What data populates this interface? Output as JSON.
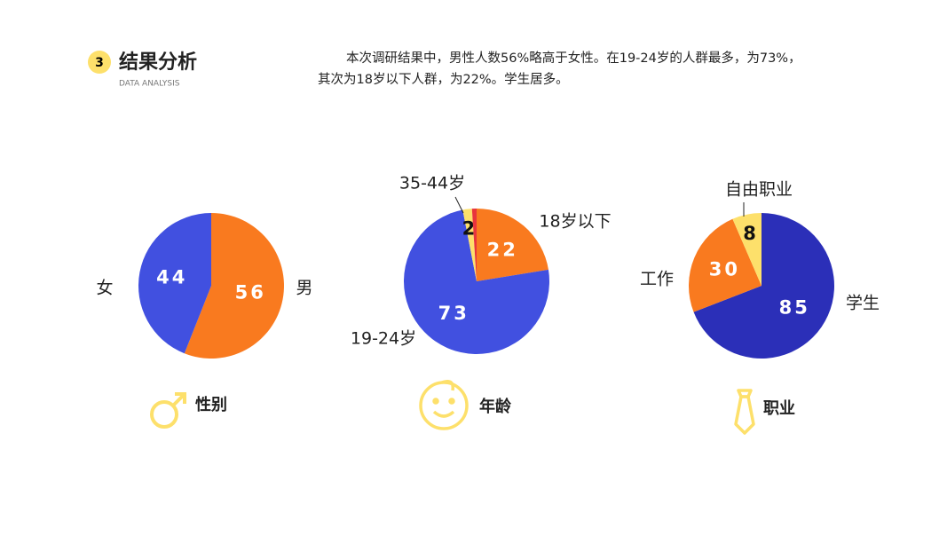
{
  "header": {
    "badge": "3",
    "title": "结果分析",
    "subtitle": "DATA ANALYSIS",
    "summary_lines": [
      "本次调研结果中，男性人数56%略高于女性。在19-24岁的人群最多，为73%，",
      "其次为18岁以下人群，为22%。学生居多。"
    ]
  },
  "chart_data": [
    {
      "type": "pie",
      "caption": "性别",
      "categories": [
        "男",
        "女"
      ],
      "values": [
        56,
        44
      ],
      "colors": [
        "#f97a1f",
        "#4150e0"
      ]
    },
    {
      "type": "pie",
      "caption": "年龄",
      "categories": [
        "18岁以下",
        "19-24岁",
        "35-44岁",
        null
      ],
      "values": [
        22,
        73,
        2,
        1
      ],
      "colors": [
        "#f97a1f",
        "#4150e0",
        "#fde06b",
        "#e8353d"
      ]
    },
    {
      "type": "pie",
      "caption": "职业",
      "categories": [
        "学生",
        "工作",
        "自由职业"
      ],
      "values": [
        85,
        30,
        8
      ],
      "colors": [
        "#2b2fb8",
        "#f97a1f",
        "#fde06b"
      ]
    }
  ]
}
